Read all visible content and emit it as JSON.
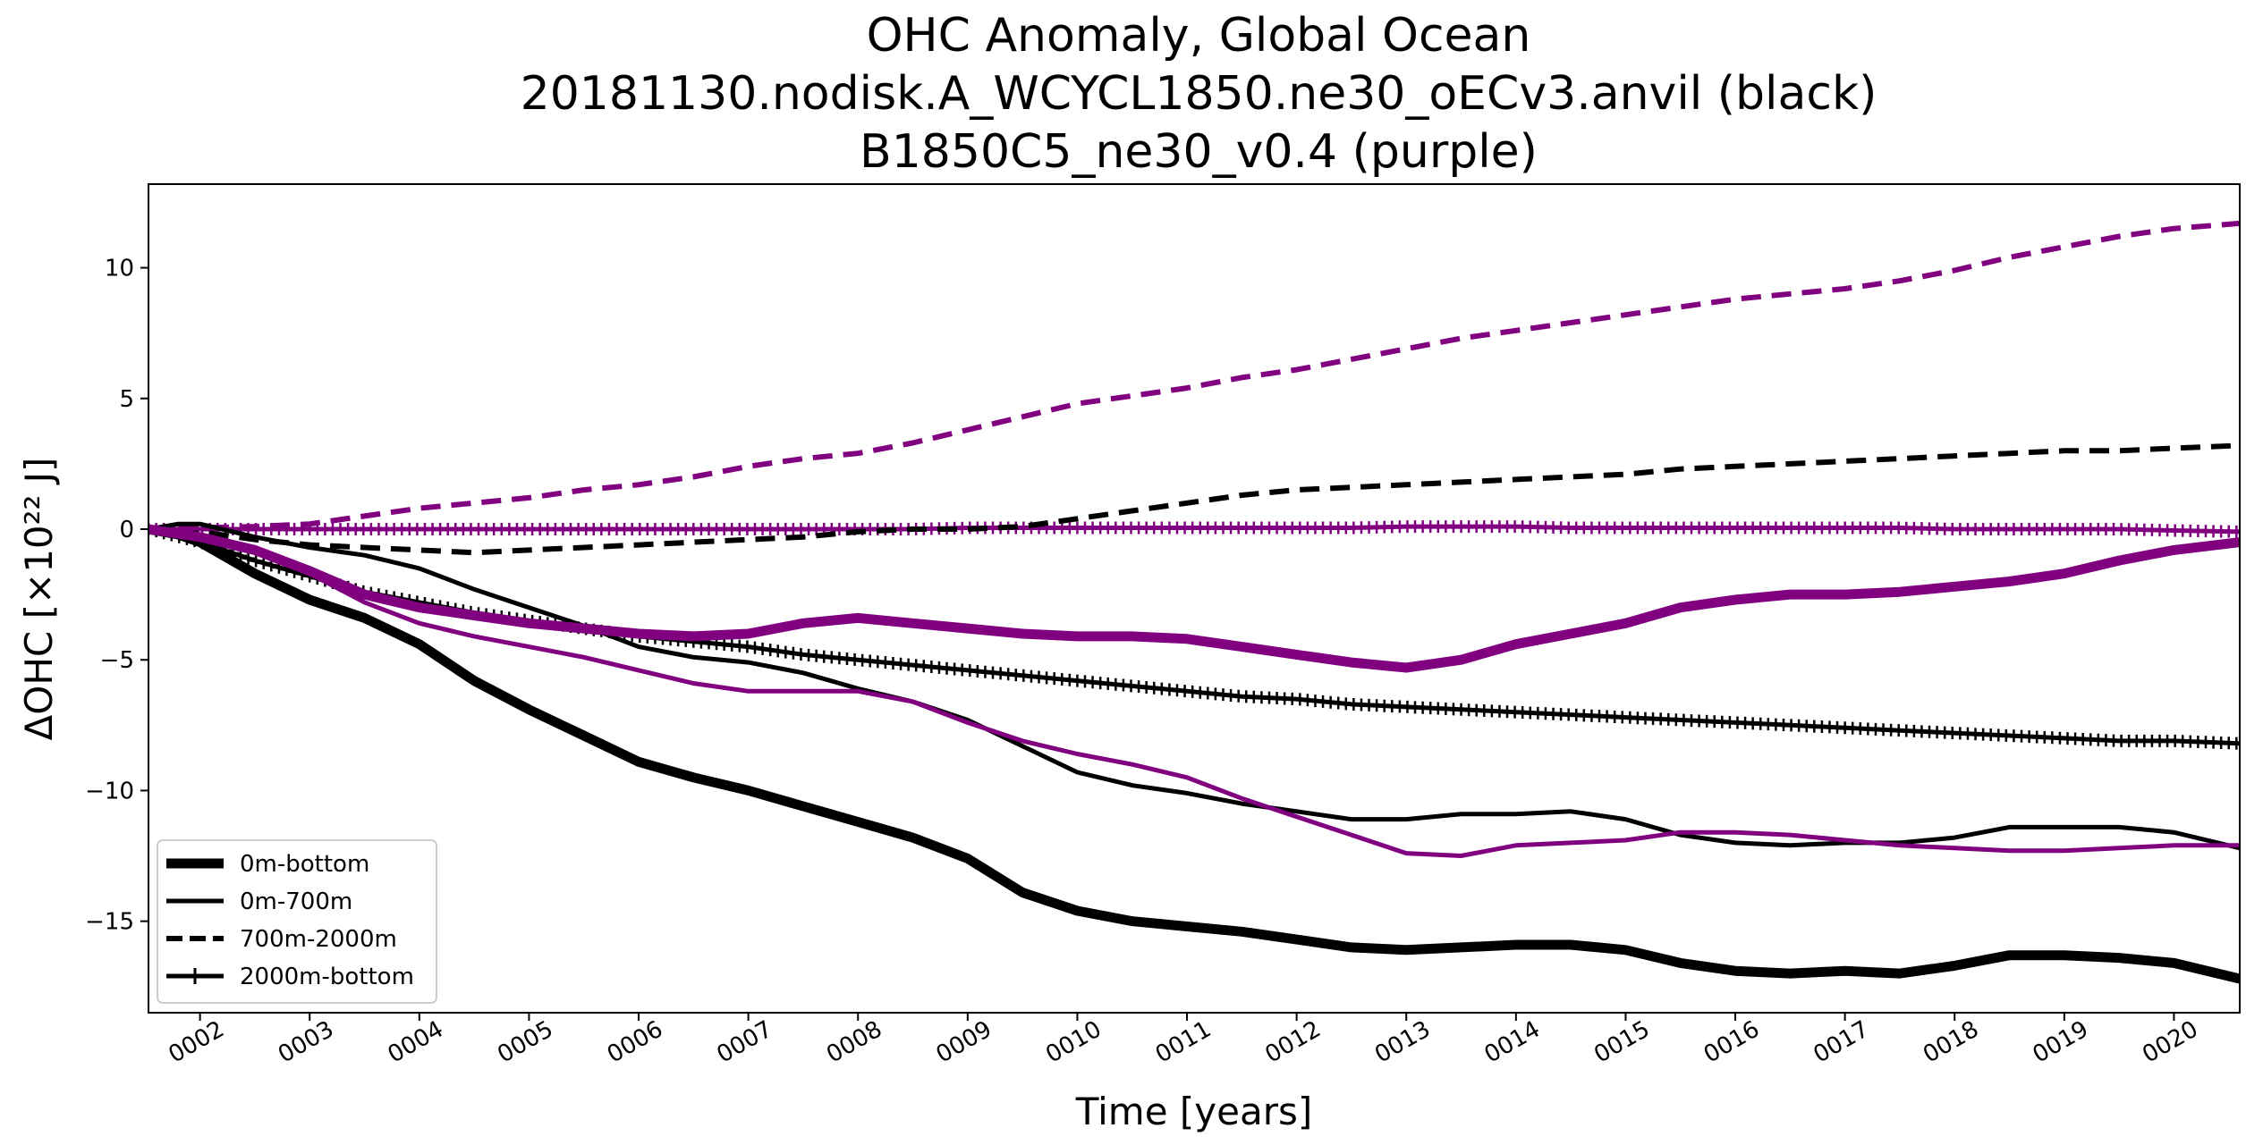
{
  "chart_data": {
    "type": "line",
    "title": [
      "OHC Anomaly, Global Ocean",
      "20181130.nodisk.A_WCYCL1850.ne30_oECv3.anvil (black)",
      "B1850C5_ne30_v0.4 (purple)"
    ],
    "xlabel": "Time [years]",
    "ylabel": "ΔOHC [×10²² J]",
    "xlim": [
      1.53,
      20.6
    ],
    "ylim": [
      -18.5,
      13.2
    ],
    "x_ticks": [
      2,
      3,
      4,
      5,
      6,
      7,
      8,
      9,
      10,
      11,
      12,
      13,
      14,
      15,
      16,
      17,
      18,
      19,
      20
    ],
    "x_tick_labels": [
      "0002",
      "0003",
      "0004",
      "0005",
      "0006",
      "0007",
      "0008",
      "0009",
      "0010",
      "0011",
      "0012",
      "0013",
      "0014",
      "0015",
      "0016",
      "0017",
      "0018",
      "0019",
      "0020"
    ],
    "y_ticks": [
      10,
      5,
      0,
      -5,
      -10,
      -15
    ],
    "y_tick_labels": [
      "10",
      "5",
      "0",
      "−5",
      "−10",
      "−15"
    ],
    "legend": {
      "placement": "lower-left",
      "entries": [
        {
          "label": "0m-bottom",
          "style": "thick"
        },
        {
          "label": "0m-700m",
          "style": "solid"
        },
        {
          "label": "700m-2000m",
          "style": "dashed"
        },
        {
          "label": "2000m-bottom",
          "style": "plus"
        }
      ]
    },
    "colors": {
      "black": "#000000",
      "purple": "#800080"
    },
    "series": [
      {
        "run": "black",
        "style": "thick",
        "x": [
          1.53,
          1.8,
          2.0,
          2.5,
          3.0,
          3.5,
          4.0,
          4.5,
          5.0,
          5.5,
          6.0,
          6.5,
          7.0,
          7.5,
          8.0,
          8.5,
          9.0,
          9.5,
          10.0,
          10.5,
          11.0,
          11.5,
          12.0,
          12.5,
          13.0,
          13.5,
          14.0,
          14.5,
          15.0,
          15.5,
          16.0,
          16.5,
          17.0,
          17.5,
          18.0,
          18.5,
          19.0,
          19.5,
          20.0,
          20.6
        ],
        "y": [
          0.0,
          -0.2,
          -0.5,
          -1.7,
          -2.7,
          -3.4,
          -4.4,
          -5.8,
          -6.9,
          -7.9,
          -8.9,
          -9.5,
          -10.0,
          -10.6,
          -11.2,
          -11.8,
          -12.6,
          -13.9,
          -14.6,
          -15.0,
          -15.2,
          -15.4,
          -15.7,
          -16.0,
          -16.1,
          -16.0,
          -15.9,
          -15.9,
          -16.1,
          -16.6,
          -16.9,
          -17.0,
          -16.9,
          -17.0,
          -16.7,
          -16.3,
          -16.3,
          -16.4,
          -16.6,
          -17.2
        ]
      },
      {
        "run": "black",
        "style": "solid",
        "x": [
          1.53,
          1.8,
          2.0,
          2.5,
          3.0,
          3.5,
          4.0,
          4.5,
          5.0,
          5.5,
          6.0,
          6.5,
          7.0,
          7.5,
          8.0,
          8.5,
          9.0,
          9.5,
          10.0,
          10.5,
          11.0,
          11.5,
          12.0,
          12.5,
          13.0,
          13.5,
          14.0,
          14.5,
          15.0,
          15.5,
          16.0,
          16.5,
          17.0,
          17.5,
          18.0,
          18.5,
          19.0,
          19.5,
          20.0,
          20.6
        ],
        "y": [
          0.0,
          0.2,
          0.2,
          -0.3,
          -0.7,
          -1.0,
          -1.5,
          -2.3,
          -3.0,
          -3.7,
          -4.5,
          -4.9,
          -5.1,
          -5.5,
          -6.1,
          -6.6,
          -7.3,
          -8.3,
          -9.3,
          -9.8,
          -10.1,
          -10.5,
          -10.8,
          -11.1,
          -11.1,
          -10.9,
          -10.9,
          -10.8,
          -11.1,
          -11.7,
          -12.0,
          -12.1,
          -12.0,
          -12.0,
          -11.8,
          -11.4,
          -11.4,
          -11.4,
          -11.6,
          -12.2
        ]
      },
      {
        "run": "black",
        "style": "dashed",
        "x": [
          1.53,
          2.0,
          2.5,
          3.0,
          3.5,
          4.0,
          4.5,
          5.0,
          5.5,
          6.0,
          6.5,
          7.0,
          7.5,
          8.0,
          8.5,
          9.0,
          9.5,
          10.0,
          10.5,
          11.0,
          11.5,
          12.0,
          12.5,
          13.0,
          13.5,
          14.0,
          14.5,
          15.0,
          15.5,
          16.0,
          16.5,
          17.0,
          17.5,
          18.0,
          18.5,
          19.0,
          19.5,
          20.0,
          20.6
        ],
        "y": [
          0.0,
          -0.1,
          -0.4,
          -0.6,
          -0.7,
          -0.8,
          -0.9,
          -0.8,
          -0.7,
          -0.6,
          -0.5,
          -0.4,
          -0.3,
          -0.1,
          0.0,
          0.0,
          0.1,
          0.4,
          0.7,
          1.0,
          1.3,
          1.5,
          1.6,
          1.7,
          1.8,
          1.9,
          2.0,
          2.1,
          2.3,
          2.4,
          2.5,
          2.6,
          2.7,
          2.8,
          2.9,
          3.0,
          3.0,
          3.1,
          3.2
        ]
      },
      {
        "run": "black",
        "style": "plus",
        "x": [
          1.53,
          2.0,
          2.5,
          3.0,
          3.5,
          4.0,
          4.5,
          5.0,
          5.5,
          6.0,
          6.5,
          7.0,
          7.5,
          8.0,
          8.5,
          9.0,
          9.5,
          10.0,
          10.5,
          11.0,
          11.5,
          12.0,
          12.5,
          13.0,
          13.5,
          14.0,
          14.5,
          15.0,
          15.5,
          16.0,
          16.5,
          17.0,
          17.5,
          18.0,
          18.5,
          19.0,
          19.5,
          20.0,
          20.6
        ],
        "y": [
          0.0,
          -0.5,
          -1.2,
          -1.8,
          -2.4,
          -2.8,
          -3.2,
          -3.5,
          -3.8,
          -4.1,
          -4.3,
          -4.5,
          -4.8,
          -5.0,
          -5.2,
          -5.4,
          -5.6,
          -5.8,
          -6.0,
          -6.2,
          -6.4,
          -6.5,
          -6.7,
          -6.8,
          -6.9,
          -7.0,
          -7.1,
          -7.2,
          -7.3,
          -7.4,
          -7.5,
          -7.6,
          -7.7,
          -7.8,
          -7.9,
          -8.0,
          -8.1,
          -8.1,
          -8.2
        ]
      },
      {
        "run": "purple",
        "style": "thick",
        "x": [
          1.53,
          2.0,
          2.5,
          3.0,
          3.5,
          4.0,
          4.5,
          5.0,
          5.5,
          6.0,
          6.5,
          7.0,
          7.5,
          8.0,
          8.5,
          9.0,
          9.5,
          10.0,
          10.5,
          11.0,
          11.5,
          12.0,
          12.5,
          13.0,
          13.5,
          14.0,
          14.5,
          15.0,
          15.5,
          16.0,
          16.5,
          17.0,
          17.5,
          18.0,
          18.5,
          19.0,
          19.5,
          20.0,
          20.6
        ],
        "y": [
          0.0,
          -0.3,
          -0.8,
          -1.6,
          -2.5,
          -3.0,
          -3.3,
          -3.6,
          -3.8,
          -4.0,
          -4.1,
          -4.0,
          -3.6,
          -3.4,
          -3.6,
          -3.8,
          -4.0,
          -4.1,
          -4.1,
          -4.2,
          -4.5,
          -4.8,
          -5.1,
          -5.3,
          -5.0,
          -4.4,
          -4.0,
          -3.6,
          -3.0,
          -2.7,
          -2.5,
          -2.5,
          -2.4,
          -2.2,
          -2.0,
          -1.7,
          -1.2,
          -0.8,
          -0.5
        ]
      },
      {
        "run": "purple",
        "style": "solid",
        "x": [
          1.53,
          2.0,
          2.5,
          3.0,
          3.5,
          4.0,
          4.5,
          5.0,
          5.5,
          6.0,
          6.5,
          7.0,
          7.5,
          8.0,
          8.5,
          9.0,
          9.5,
          10.0,
          10.5,
          11.0,
          11.5,
          12.0,
          12.5,
          13.0,
          13.5,
          14.0,
          14.5,
          15.0,
          15.5,
          16.0,
          16.5,
          17.0,
          17.5,
          18.0,
          18.5,
          19.0,
          19.5,
          20.0,
          20.6
        ],
        "y": [
          0.0,
          -0.3,
          -0.8,
          -1.7,
          -2.8,
          -3.6,
          -4.1,
          -4.5,
          -4.9,
          -5.4,
          -5.9,
          -6.2,
          -6.2,
          -6.2,
          -6.6,
          -7.4,
          -8.1,
          -8.6,
          -9.0,
          -9.5,
          -10.3,
          -11.0,
          -11.7,
          -12.4,
          -12.5,
          -12.1,
          -12.0,
          -11.9,
          -11.6,
          -11.6,
          -11.7,
          -11.9,
          -12.1,
          -12.2,
          -12.3,
          -12.3,
          -12.2,
          -12.1,
          -12.1
        ]
      },
      {
        "run": "purple",
        "style": "dashed",
        "x": [
          1.53,
          2.0,
          2.5,
          3.0,
          3.5,
          4.0,
          4.5,
          5.0,
          5.5,
          6.0,
          6.5,
          7.0,
          7.5,
          8.0,
          8.5,
          9.0,
          9.5,
          10.0,
          10.5,
          11.0,
          11.5,
          12.0,
          12.5,
          13.0,
          13.5,
          14.0,
          14.5,
          15.0,
          15.5,
          16.0,
          16.5,
          17.0,
          17.5,
          18.0,
          18.5,
          19.0,
          19.5,
          20.0,
          20.6
        ],
        "y": [
          0.0,
          0.05,
          0.1,
          0.2,
          0.5,
          0.8,
          1.0,
          1.2,
          1.5,
          1.7,
          2.0,
          2.4,
          2.7,
          2.9,
          3.3,
          3.8,
          4.3,
          4.8,
          5.1,
          5.4,
          5.8,
          6.1,
          6.5,
          6.9,
          7.3,
          7.6,
          7.9,
          8.2,
          8.5,
          8.8,
          9.0,
          9.2,
          9.5,
          9.9,
          10.4,
          10.8,
          11.2,
          11.5,
          11.7
        ]
      },
      {
        "run": "purple",
        "style": "plus",
        "x": [
          1.53,
          2.0,
          2.5,
          3.0,
          3.5,
          4.0,
          4.5,
          5.0,
          5.5,
          6.0,
          6.5,
          7.0,
          7.5,
          8.0,
          8.5,
          9.0,
          9.5,
          10.0,
          10.5,
          11.0,
          11.5,
          12.0,
          12.5,
          13.0,
          13.5,
          14.0,
          14.5,
          15.0,
          15.5,
          16.0,
          16.5,
          17.0,
          17.5,
          18.0,
          18.5,
          19.0,
          19.5,
          20.0,
          20.6
        ],
        "y": [
          0.0,
          0.0,
          0.0,
          0.0,
          0.0,
          0.0,
          0.0,
          0.0,
          0.0,
          0.0,
          0.0,
          0.0,
          0.0,
          0.0,
          0.0,
          0.05,
          0.05,
          0.05,
          0.05,
          0.05,
          0.05,
          0.05,
          0.05,
          0.1,
          0.1,
          0.1,
          0.05,
          0.05,
          0.05,
          0.05,
          0.05,
          0.05,
          0.05,
          0.0,
          0.0,
          0.0,
          0.0,
          -0.05,
          -0.1
        ]
      }
    ]
  }
}
